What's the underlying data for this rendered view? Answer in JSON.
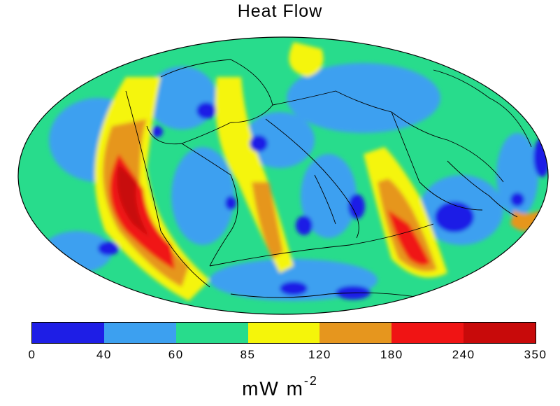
{
  "title": "Heat Flow",
  "units": {
    "base": "mW  m",
    "exponent": "-2"
  },
  "colorbar": {
    "ticks": [
      "0",
      "40",
      "60",
      "85",
      "120",
      "180",
      "240",
      "350"
    ],
    "bins": [
      {
        "from": 0,
        "to": 40,
        "color": "#1e1ee6"
      },
      {
        "from": 40,
        "to": 60,
        "color": "#3ca0f0"
      },
      {
        "from": 60,
        "to": 85,
        "color": "#28dc8c"
      },
      {
        "from": 85,
        "to": 120,
        "color": "#f5f50a"
      },
      {
        "from": 120,
        "to": 180,
        "color": "#e6961e"
      },
      {
        "from": 180,
        "to": 240,
        "color": "#f01414"
      },
      {
        "from": 240,
        "to": 350,
        "color": "#c80a0a"
      }
    ]
  },
  "map": {
    "projection": "Mollweide (global)",
    "overlays": [
      "coastlines",
      "plate boundaries"
    ],
    "background_color": "#28dc8c"
  }
}
